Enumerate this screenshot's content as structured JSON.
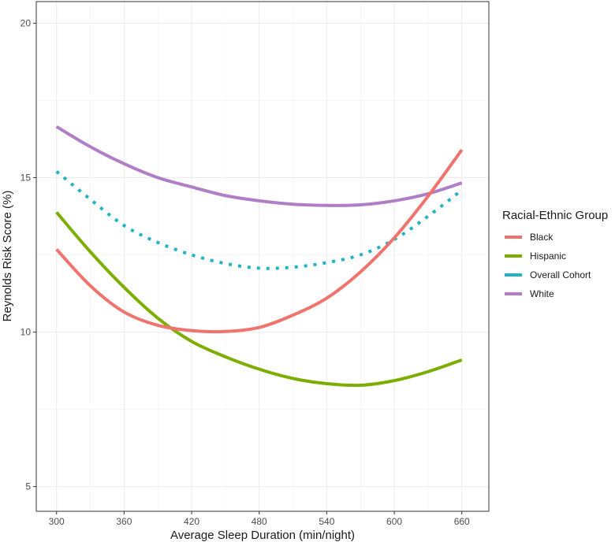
{
  "chart_data": {
    "type": "line",
    "xlabel": "Average Sleep Duration (min/night)",
    "ylabel": "Reynolds Risk Score (%)",
    "xlim": [
      282,
      684
    ],
    "ylim": [
      4.2,
      20.7
    ],
    "x_ticks": [
      300,
      360,
      420,
      480,
      540,
      600,
      660
    ],
    "y_ticks": [
      5,
      10,
      15,
      20
    ],
    "grid": true,
    "legend": {
      "title": "Racial-Ethnic Group",
      "placement": "right",
      "entries": [
        "Black",
        "Hispanic",
        "Overall Cohort",
        "White"
      ]
    },
    "series": [
      {
        "name": "Black",
        "color": "#F0736D",
        "dash": "solid",
        "x": [
          300,
          330,
          360,
          390,
          420,
          450,
          480,
          510,
          540,
          570,
          600,
          630,
          660
        ],
        "y": [
          12.68,
          11.5,
          10.65,
          10.22,
          10.05,
          10.02,
          10.15,
          10.55,
          11.1,
          11.95,
          13.05,
          14.4,
          15.9
        ]
      },
      {
        "name": "Hispanic",
        "color": "#7CAE00",
        "dash": "solid",
        "x": [
          300,
          330,
          360,
          390,
          420,
          450,
          480,
          510,
          540,
          570,
          600,
          630,
          660
        ],
        "y": [
          13.88,
          12.6,
          11.45,
          10.45,
          9.7,
          9.2,
          8.8,
          8.5,
          8.33,
          8.28,
          8.43,
          8.72,
          9.1
        ]
      },
      {
        "name": "Overall Cohort",
        "color": "#22B3C4",
        "dash": "dotted",
        "x": [
          300,
          330,
          360,
          390,
          420,
          450,
          480,
          510,
          540,
          570,
          600,
          630,
          660
        ],
        "y": [
          15.2,
          14.3,
          13.45,
          12.9,
          12.5,
          12.22,
          12.07,
          12.1,
          12.25,
          12.5,
          13.0,
          13.75,
          14.6
        ]
      },
      {
        "name": "White",
        "color": "#B07DC7",
        "dash": "solid",
        "x": [
          300,
          330,
          360,
          390,
          420,
          450,
          480,
          510,
          540,
          570,
          600,
          630,
          660
        ],
        "y": [
          16.65,
          16.0,
          15.45,
          15.0,
          14.7,
          14.42,
          14.25,
          14.14,
          14.1,
          14.12,
          14.25,
          14.48,
          14.83
        ]
      }
    ]
  }
}
